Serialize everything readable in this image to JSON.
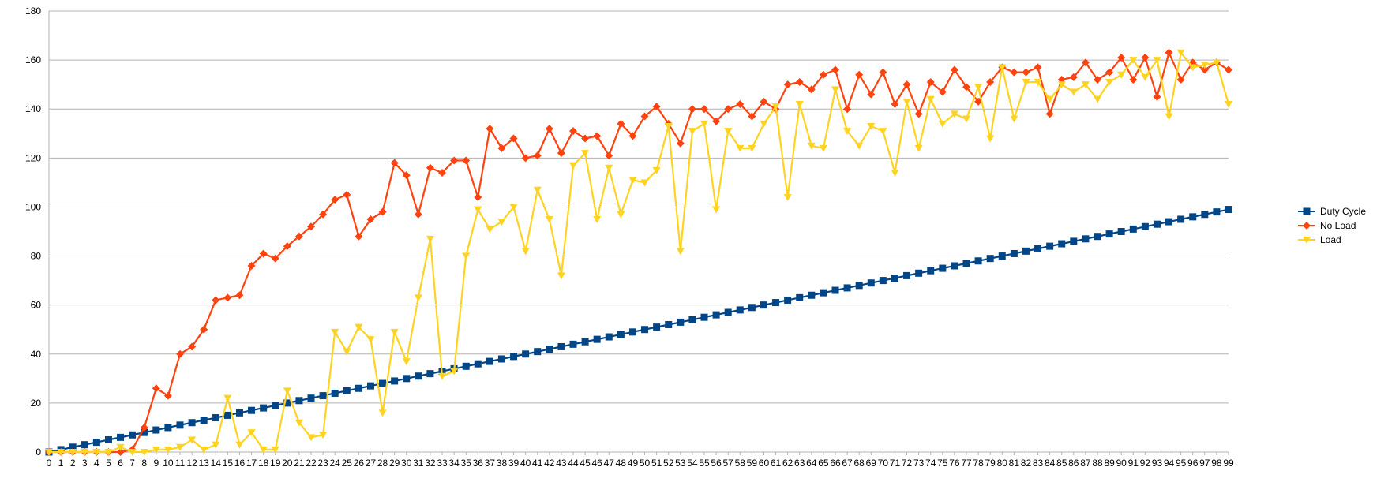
{
  "chart_data": {
    "type": "line",
    "title": "",
    "xlabel": "",
    "ylabel": "",
    "x": [
      0,
      1,
      2,
      3,
      4,
      5,
      6,
      7,
      8,
      9,
      10,
      11,
      12,
      13,
      14,
      15,
      16,
      17,
      18,
      19,
      20,
      21,
      22,
      23,
      24,
      25,
      26,
      27,
      28,
      29,
      30,
      31,
      32,
      33,
      34,
      35,
      36,
      37,
      38,
      39,
      40,
      41,
      42,
      43,
      44,
      45,
      46,
      47,
      48,
      49,
      50,
      51,
      52,
      53,
      54,
      55,
      56,
      57,
      58,
      59,
      60,
      61,
      62,
      63,
      64,
      65,
      66,
      67,
      68,
      69,
      70,
      71,
      72,
      73,
      74,
      75,
      76,
      77,
      78,
      79,
      80,
      81,
      82,
      83,
      84,
      85,
      86,
      87,
      88,
      89,
      90,
      91,
      92,
      93,
      94,
      95,
      96,
      97,
      98,
      99
    ],
    "ylim": [
      0,
      180
    ],
    "yticks": [
      0,
      20,
      40,
      60,
      80,
      100,
      120,
      140,
      160,
      180
    ],
    "grid": true,
    "legend_position": "right",
    "series": [
      {
        "name": "Duty Cycle",
        "color": "#004586",
        "marker": "square",
        "values": [
          0,
          1,
          2,
          3,
          4,
          5,
          6,
          7,
          8,
          9,
          10,
          11,
          12,
          13,
          14,
          15,
          16,
          17,
          18,
          19,
          20,
          21,
          22,
          23,
          24,
          25,
          26,
          27,
          28,
          29,
          30,
          31,
          32,
          33,
          34,
          35,
          36,
          37,
          38,
          39,
          40,
          41,
          42,
          43,
          44,
          45,
          46,
          47,
          48,
          49,
          50,
          51,
          52,
          53,
          54,
          55,
          56,
          57,
          58,
          59,
          60,
          61,
          62,
          63,
          64,
          65,
          66,
          67,
          68,
          69,
          70,
          71,
          72,
          73,
          74,
          75,
          76,
          77,
          78,
          79,
          80,
          81,
          82,
          83,
          84,
          85,
          86,
          87,
          88,
          89,
          90,
          91,
          92,
          93,
          94,
          95,
          96,
          97,
          98,
          99
        ]
      },
      {
        "name": "No Load",
        "color": "#ff420e",
        "marker": "diamond",
        "values": [
          0,
          0,
          0,
          0,
          0,
          0,
          0,
          1,
          10,
          26,
          23,
          40,
          43,
          50,
          62,
          63,
          64,
          76,
          81,
          79,
          84,
          88,
          92,
          97,
          103,
          105,
          88,
          95,
          98,
          118,
          113,
          97,
          116,
          114,
          119,
          119,
          104,
          132,
          124,
          128,
          120,
          121,
          132,
          122,
          131,
          128,
          129,
          121,
          134,
          129,
          137,
          141,
          134,
          126,
          140,
          140,
          135,
          140,
          142,
          137,
          143,
          140,
          150,
          151,
          148,
          154,
          156,
          140,
          154,
          146,
          155,
          142,
          150,
          138,
          151,
          147,
          156,
          149,
          143,
          151,
          157,
          155,
          155,
          157,
          138,
          152,
          153,
          159,
          152,
          155,
          161,
          152,
          161,
          145,
          163,
          152,
          159,
          156,
          159,
          156
        ]
      },
      {
        "name": "Load",
        "color": "#ffd320",
        "marker": "triangle-down",
        "values": [
          0,
          0,
          0,
          0,
          0,
          0,
          2,
          0,
          0,
          1,
          1,
          2,
          5,
          1,
          3,
          22,
          3,
          8,
          1,
          1,
          25,
          12,
          6,
          7,
          49,
          41,
          51,
          46,
          16,
          49,
          37,
          63,
          87,
          31,
          33,
          80,
          99,
          91,
          94,
          100,
          82,
          107,
          95,
          72,
          117,
          122,
          95,
          116,
          97,
          111,
          110,
          115,
          133,
          82,
          131,
          134,
          99,
          131,
          124,
          124,
          134,
          141,
          104,
          142,
          125,
          124,
          148,
          131,
          125,
          133,
          131,
          114,
          143,
          124,
          144,
          134,
          138,
          136,
          149,
          128,
          157,
          136,
          151,
          151,
          144,
          150,
          147,
          150,
          144,
          151,
          154,
          160,
          153,
          160,
          137,
          163,
          157,
          158,
          159,
          142
        ]
      }
    ]
  }
}
